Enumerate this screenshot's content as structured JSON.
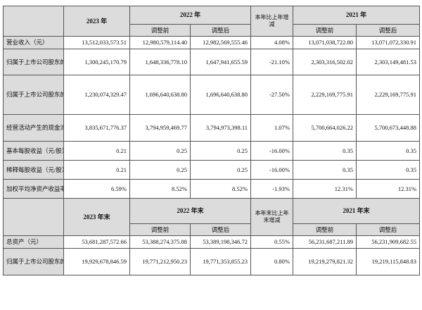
{
  "header1": {
    "col_2023": "2023 年",
    "col_2022": "2022 年",
    "col_change": "本年比上年增减",
    "col_2021": "2021 年",
    "before_adj": "调整前",
    "after_adj": "调整后"
  },
  "rows1": [
    {
      "label": "营业收入（元）",
      "v2023": "13,512,033,573.51",
      "v2022a": "12,980,579,114.40",
      "v2022b": "12,982,569,555.46",
      "chg": "4.08%",
      "v2021a": "13,071,038,722.80",
      "v2021b": "13,071,072,330.91"
    },
    {
      "label": "归属于上市公司股东的净利润（元）",
      "v2023": "1,300,245,170.79",
      "v2022a": "1,648,336,778.10",
      "v2022b": "1,647,941,655.59",
      "chg": "-21.10%",
      "v2021a": "2,303,316,502.02",
      "v2021b": "2,303,149,481.53"
    },
    {
      "label": "归属于上市公司股东的扣除非经常性损益的净利润（元）",
      "v2023": "1,230,074,329.47",
      "v2022a": "1,696,640,638.80",
      "v2022b": "1,696,640,638.80",
      "chg": "-27.50%",
      "v2021a": "2,229,169,775.91",
      "v2021b": "2,229,169,775.91"
    },
    {
      "label": "经营活动产生的现金流量净额（元）",
      "v2023": "3,835,671,776.37",
      "v2022a": "3,794,959,469.77",
      "v2022b": "3,794,973,398.11",
      "chg": "1.07%",
      "v2021a": "5,700,664,026.22",
      "v2021b": "5,700,673,448.88"
    },
    {
      "label": "基本每股收益（元/股）",
      "v2023": "0.21",
      "v2022a": "0.25",
      "v2022b": "0.25",
      "chg": "-16.00%",
      "v2021a": "0.35",
      "v2021b": "0.35"
    },
    {
      "label": "稀释每股收益（元/股）",
      "v2023": "0.21",
      "v2022a": "0.25",
      "v2022b": "0.25",
      "chg": "-16.00%",
      "v2021a": "0.35",
      "v2021b": "0.35"
    },
    {
      "label": "加权平均净资产收益率",
      "v2023": "6.59%",
      "v2022a": "8.52%",
      "v2022b": "8.52%",
      "chg": "-1.93%",
      "v2021a": "12.31%",
      "v2021b": "12.31%"
    }
  ],
  "header2": {
    "col_2023": "2023 年末",
    "col_2022": "2022 年末",
    "col_change": "本年末比上年末增减",
    "col_2021": "2021 年末",
    "before_adj": "调整前",
    "after_adj": "调整后"
  },
  "rows2": [
    {
      "label": "总资产（元）",
      "v2023": "53,681,287,572.66",
      "v2022a": "53,388,274,375.88",
      "v2022b": "53,389,198,346.72",
      "chg": "0.55%",
      "v2021a": "56,231,687,211.89",
      "v2021b": "56,231,909,682.55"
    },
    {
      "label": "归属于上市公司股东的净资产（元）",
      "v2023": "19,929,678,846.59",
      "v2022a": "19,771,212,950.23",
      "v2022b": "19,771,353,855.23",
      "chg": "0.80%",
      "v2021a": "19,219,279,821.32",
      "v2021b": "19,219,115,848.83"
    }
  ]
}
